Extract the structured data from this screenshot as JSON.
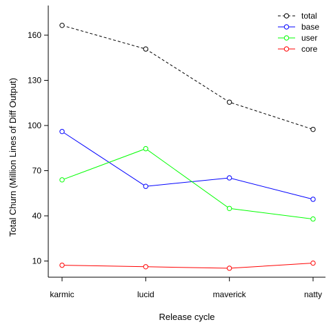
{
  "chart_data": {
    "type": "line",
    "categories": [
      "karmic",
      "lucid",
      "maverick",
      "natty"
    ],
    "ylabel": "Total Churn (Million Lines of Diff Output)",
    "xlabel": "Release cycle",
    "yticks": [
      10,
      40,
      70,
      100,
      130,
      160
    ],
    "ylim": [
      0,
      170
    ],
    "grid": false,
    "legend_position": "top-right",
    "series": [
      {
        "name": "total",
        "color": "#000000",
        "dashed": true,
        "values": [
          166.5,
          150.8,
          115.5,
          97.4
        ]
      },
      {
        "name": "base",
        "color": "#0000ff",
        "dashed": false,
        "values": [
          96.0,
          59.6,
          65.2,
          51.0
        ]
      },
      {
        "name": "user",
        "color": "#00ff00",
        "dashed": false,
        "values": [
          63.9,
          84.6,
          44.9,
          37.9
        ]
      },
      {
        "name": "core",
        "color": "#ff0000",
        "dashed": false,
        "values": [
          7.2,
          6.2,
          5.2,
          8.6
        ]
      }
    ]
  }
}
